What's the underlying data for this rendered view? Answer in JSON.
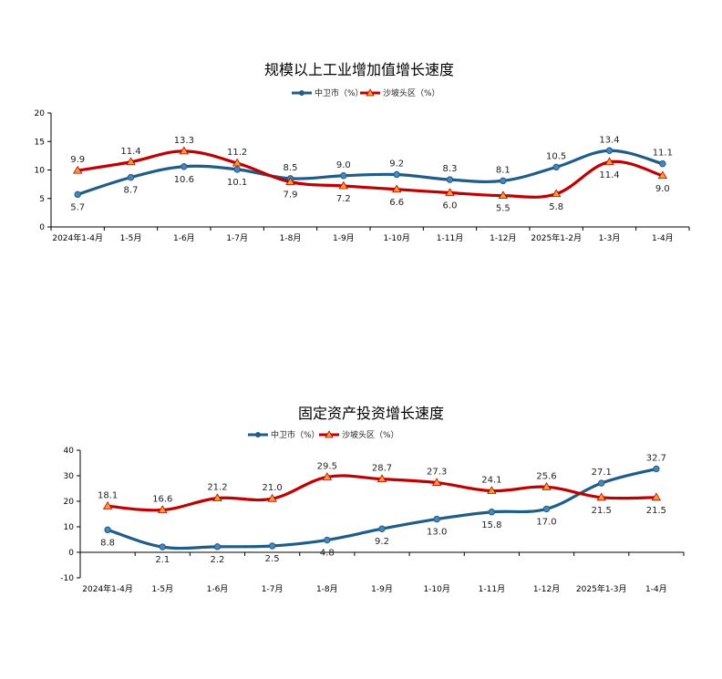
{
  "chart_data": [
    {
      "type": "line",
      "title": "规模以上工业增加值增长速度",
      "categories": [
        "2024年1-4月",
        "1-5月",
        "1-6月",
        "1-7月",
        "1-8月",
        "1-9月",
        "1-10月",
        "1-11月",
        "1-12月",
        "2025年1-2月",
        "1-3月",
        "1-4月"
      ],
      "ylim": [
        0,
        20
      ],
      "yticks": [
        "0",
        "5",
        "10",
        "15",
        "20"
      ],
      "legend_position": "top-center",
      "grid": false,
      "series": [
        {
          "name": "中卫市（%）",
          "color": "#1F5C87",
          "marker": "circle",
          "values": [
            5.7,
            8.7,
            10.6,
            10.1,
            8.5,
            9.0,
            9.2,
            8.3,
            8.1,
            10.5,
            13.4,
            11.1
          ],
          "labels": [
            "5.7",
            "8.7",
            "10.6",
            "10.1",
            "8.5",
            "9.0",
            "9.2",
            "8.3",
            "8.1",
            "10.5",
            "13.4",
            "11.1"
          ]
        },
        {
          "name": "沙坡头区（%）",
          "color": "#C00000",
          "marker": "triangle",
          "values": [
            9.9,
            11.4,
            13.3,
            11.2,
            7.9,
            7.2,
            6.6,
            6.0,
            5.5,
            5.8,
            11.4,
            9.0
          ],
          "labels": [
            "9.9",
            "11.4",
            "13.3",
            "11.2",
            "7.9",
            "7.2",
            "6.6",
            "6.0",
            "5.5",
            "5.8",
            "11.4",
            "9.0"
          ]
        }
      ]
    },
    {
      "type": "line",
      "title": "固定资产投资增长速度",
      "categories": [
        "2024年1-4月",
        "1-5月",
        "1-6月",
        "1-7月",
        "1-8月",
        "1-9月",
        "1-10月",
        "1-11月",
        "1-12月",
        "2025年1-3月",
        "1-4月"
      ],
      "ylim": [
        -10,
        40
      ],
      "yticks": [
        "-10",
        "0",
        "10",
        "20",
        "30",
        "40"
      ],
      "legend_position": "top-center",
      "grid": false,
      "series": [
        {
          "name": "中卫市（%）",
          "color": "#1F5C87",
          "marker": "circle",
          "values": [
            8.8,
            2.1,
            2.2,
            2.5,
            4.8,
            9.2,
            13.0,
            15.8,
            17.0,
            27.1,
            32.7
          ],
          "labels": [
            "8.8",
            "2.1",
            "2.2",
            "2.5",
            "4.8",
            "9.2",
            "13.0",
            "15.8",
            "17.0",
            "27.1",
            "32.7"
          ]
        },
        {
          "name": "沙坡头区（%）",
          "color": "#C00000",
          "marker": "triangle",
          "values": [
            18.1,
            16.6,
            21.2,
            21.0,
            29.5,
            28.7,
            27.3,
            24.1,
            25.6,
            21.5,
            21.5
          ],
          "labels": [
            "18.1",
            "16.6",
            "21.2",
            "21.0",
            "29.5",
            "28.7",
            "27.3",
            "24.1",
            "25.6",
            "21.5",
            "21.5"
          ]
        }
      ]
    }
  ]
}
